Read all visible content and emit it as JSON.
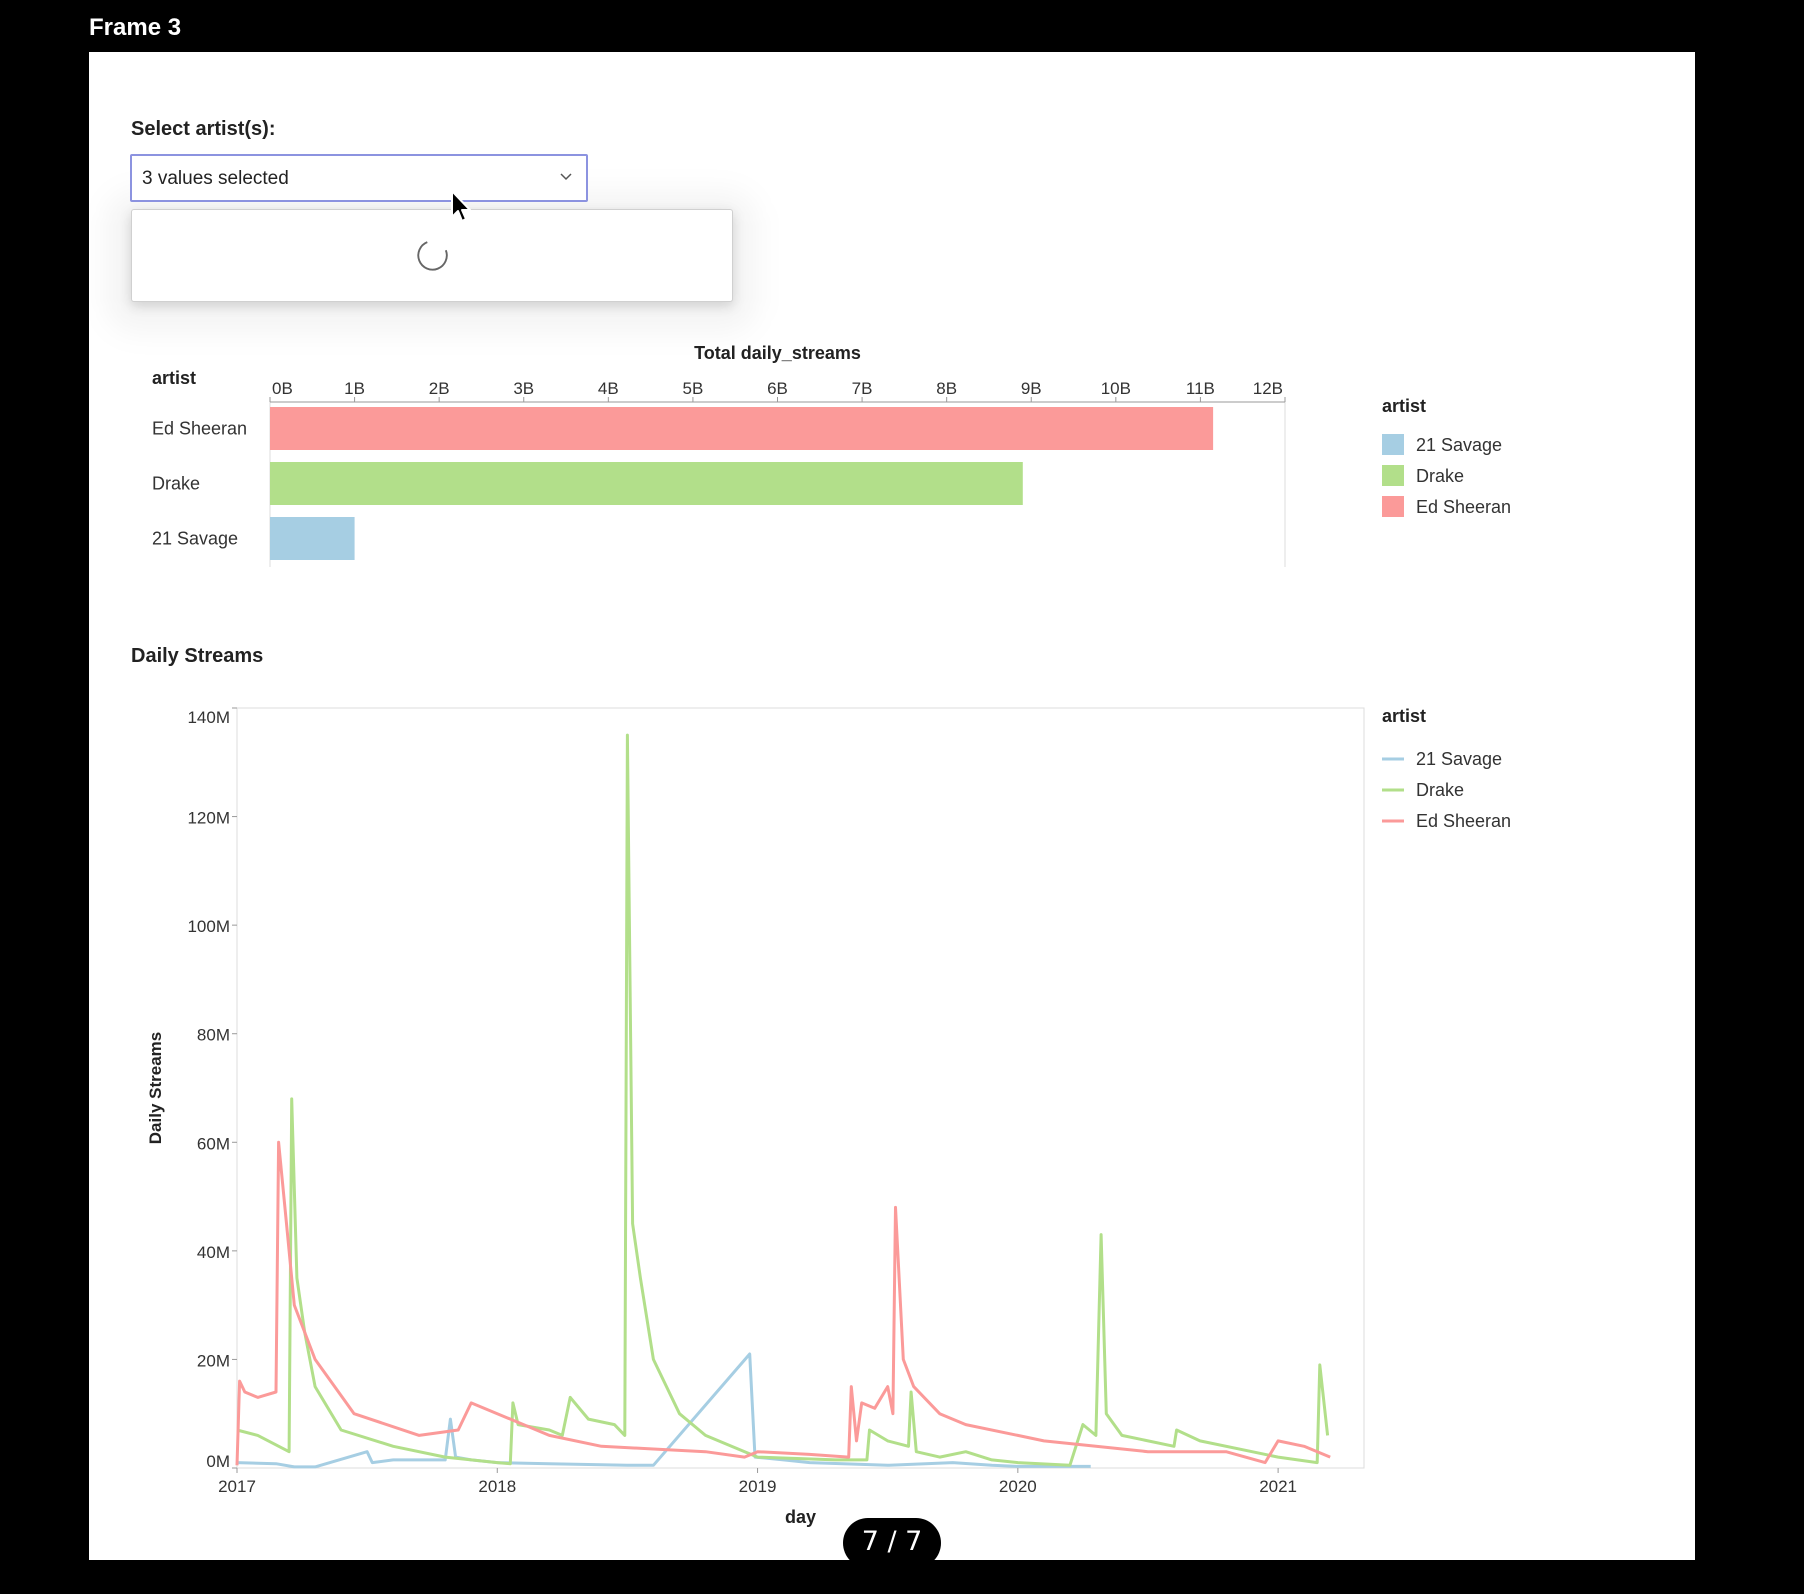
{
  "frame": {
    "title": "Frame 3"
  },
  "filter": {
    "label": "Select artist(s):",
    "value": "3 values selected",
    "state": "loading"
  },
  "pager": {
    "text": "7 / 7"
  },
  "colors": {
    "21 Savage": "#a6cee3",
    "Drake": "#b2df8a",
    "Ed Sheeran": "#fb9a99"
  },
  "chart_data": [
    {
      "type": "bar",
      "orientation": "horizontal",
      "title": "Total daily_streams",
      "ylabel": "artist",
      "categories": [
        "Ed Sheeran",
        "Drake",
        "21 Savage"
      ],
      "values": [
        11.15,
        8.9,
        1.0
      ],
      "value_unit": "B",
      "xlim": [
        0,
        12
      ],
      "x_ticks": [
        0,
        1,
        2,
        3,
        4,
        5,
        6,
        7,
        8,
        9,
        10,
        11,
        12
      ],
      "x_tick_labels": [
        "0B",
        "1B",
        "2B",
        "3B",
        "4B",
        "5B",
        "6B",
        "7B",
        "8B",
        "9B",
        "10B",
        "11B",
        "12B"
      ],
      "legend": {
        "title": "artist",
        "items": [
          "21 Savage",
          "Drake",
          "Ed Sheeran"
        ],
        "placement": "right"
      }
    },
    {
      "type": "line",
      "title": "Daily Streams",
      "xlabel": "day",
      "ylabel": "Daily Streams",
      "xlim": [
        2017.0,
        2021.33
      ],
      "ylim": [
        0,
        140
      ],
      "y_unit": "M",
      "x_ticks": [
        2017,
        2018,
        2019,
        2020,
        2021
      ],
      "x_tick_labels": [
        "2017",
        "2018",
        "2019",
        "2020",
        "2021"
      ],
      "y_ticks": [
        0,
        20,
        40,
        60,
        80,
        100,
        120,
        140
      ],
      "y_tick_labels": [
        "0M",
        "20M",
        "40M",
        "60M",
        "80M",
        "100M",
        "120M",
        "140M"
      ],
      "legend": {
        "title": "artist",
        "items": [
          "21 Savage",
          "Drake",
          "Ed Sheeran"
        ],
        "placement": "right"
      },
      "series": [
        {
          "name": "21 Savage",
          "points": [
            [
              2017.0,
              1.0
            ],
            [
              2017.15,
              0.8
            ],
            [
              2017.22,
              0.2
            ],
            [
              2017.3,
              0.2
            ],
            [
              2017.5,
              3.0
            ],
            [
              2017.52,
              1.0
            ],
            [
              2017.6,
              1.5
            ],
            [
              2017.8,
              1.5
            ],
            [
              2017.82,
              9.0
            ],
            [
              2017.84,
              2.0
            ],
            [
              2017.9,
              1.5
            ],
            [
              2018.0,
              1.0
            ],
            [
              2018.2,
              0.8
            ],
            [
              2018.5,
              0.5
            ],
            [
              2018.6,
              0.5
            ],
            [
              2018.97,
              21.0
            ],
            [
              2018.99,
              2.0
            ],
            [
              2019.1,
              1.5
            ],
            [
              2019.2,
              1.0
            ],
            [
              2019.5,
              0.5
            ],
            [
              2019.75,
              1.0
            ],
            [
              2019.9,
              0.5
            ],
            [
              2020.0,
              0.3
            ],
            [
              2020.28,
              0.3
            ]
          ]
        },
        {
          "name": "Drake",
          "points": [
            [
              2017.0,
              7.0
            ],
            [
              2017.08,
              6.0
            ],
            [
              2017.2,
              3.0
            ],
            [
              2017.21,
              68.0
            ],
            [
              2017.23,
              35.0
            ],
            [
              2017.26,
              25.0
            ],
            [
              2017.3,
              15.0
            ],
            [
              2017.4,
              7.0
            ],
            [
              2017.6,
              4.0
            ],
            [
              2017.8,
              2.0
            ],
            [
              2018.0,
              1.0
            ],
            [
              2018.05,
              0.8
            ],
            [
              2018.06,
              12.0
            ],
            [
              2018.08,
              8.0
            ],
            [
              2018.2,
              7.0
            ],
            [
              2018.25,
              6.0
            ],
            [
              2018.28,
              13.0
            ],
            [
              2018.35,
              9.0
            ],
            [
              2018.45,
              8.0
            ],
            [
              2018.49,
              6.0
            ],
            [
              2018.5,
              135.0
            ],
            [
              2018.52,
              45.0
            ],
            [
              2018.55,
              35.0
            ],
            [
              2018.6,
              20.0
            ],
            [
              2018.7,
              10.0
            ],
            [
              2018.8,
              6.0
            ],
            [
              2018.9,
              4.0
            ],
            [
              2019.0,
              2.0
            ],
            [
              2019.3,
              1.5
            ],
            [
              2019.42,
              1.5
            ],
            [
              2019.43,
              7.0
            ],
            [
              2019.5,
              5.0
            ],
            [
              2019.58,
              4.0
            ],
            [
              2019.59,
              14.0
            ],
            [
              2019.61,
              3.0
            ],
            [
              2019.7,
              2.0
            ],
            [
              2019.8,
              3.0
            ],
            [
              2019.9,
              1.5
            ],
            [
              2020.0,
              1.0
            ],
            [
              2020.2,
              0.5
            ],
            [
              2020.25,
              8.0
            ],
            [
              2020.3,
              6.0
            ],
            [
              2020.32,
              43.0
            ],
            [
              2020.34,
              10.0
            ],
            [
              2020.4,
              6.0
            ],
            [
              2020.6,
              4.0
            ],
            [
              2020.61,
              7.0
            ],
            [
              2020.7,
              5.0
            ],
            [
              2020.9,
              3.0
            ],
            [
              2021.0,
              2.0
            ],
            [
              2021.15,
              1.0
            ],
            [
              2021.16,
              19.0
            ],
            [
              2021.19,
              6.0
            ]
          ]
        },
        {
          "name": "Ed Sheeran",
          "points": [
            [
              2017.0,
              0.5
            ],
            [
              2017.01,
              16.0
            ],
            [
              2017.03,
              14.0
            ],
            [
              2017.08,
              13.0
            ],
            [
              2017.15,
              14.0
            ],
            [
              2017.16,
              60.0
            ],
            [
              2017.19,
              45.0
            ],
            [
              2017.2,
              40.0
            ],
            [
              2017.22,
              30.0
            ],
            [
              2017.3,
              20.0
            ],
            [
              2017.45,
              10.0
            ],
            [
              2017.7,
              6.0
            ],
            [
              2017.85,
              7.0
            ],
            [
              2017.9,
              12.0
            ],
            [
              2018.0,
              10.0
            ],
            [
              2018.2,
              6.0
            ],
            [
              2018.4,
              4.0
            ],
            [
              2018.6,
              3.5
            ],
            [
              2018.8,
              3.0
            ],
            [
              2018.95,
              2.0
            ],
            [
              2019.0,
              3.0
            ],
            [
              2019.2,
              2.5
            ],
            [
              2019.35,
              2.0
            ],
            [
              2019.36,
              15.0
            ],
            [
              2019.38,
              5.0
            ],
            [
              2019.4,
              12.0
            ],
            [
              2019.45,
              11.0
            ],
            [
              2019.5,
              15.0
            ],
            [
              2019.52,
              10.0
            ],
            [
              2019.53,
              48.0
            ],
            [
              2019.56,
              20.0
            ],
            [
              2019.6,
              15.0
            ],
            [
              2019.7,
              10.0
            ],
            [
              2019.8,
              8.0
            ],
            [
              2020.0,
              6.0
            ],
            [
              2020.1,
              5.0
            ],
            [
              2020.3,
              4.0
            ],
            [
              2020.5,
              3.0
            ],
            [
              2020.8,
              3.0
            ],
            [
              2020.95,
              1.0
            ],
            [
              2021.0,
              5.0
            ],
            [
              2021.1,
              4.0
            ],
            [
              2021.2,
              2.0
            ]
          ]
        }
      ]
    }
  ]
}
